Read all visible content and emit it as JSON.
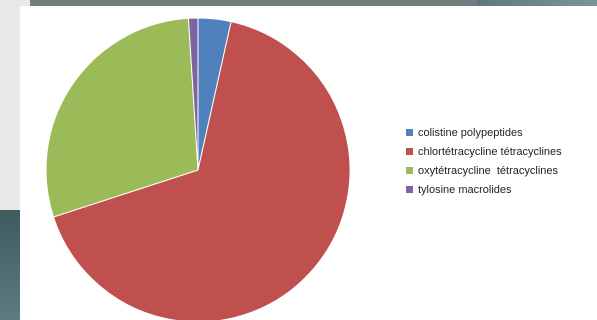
{
  "chart_data": {
    "type": "pie",
    "labels": [
      "colistine polypeptides",
      "chlortétracycline tétracyclines",
      "oxytétracycline  tétracyclines",
      "tylosine macrolides"
    ],
    "values": [
      3.5,
      66.5,
      29.0,
      1.0
    ],
    "colors": [
      "#4f81bd",
      "#c0504d",
      "#9bbb59",
      "#8064a2"
    ],
    "legend_position": "right"
  },
  "legend": {
    "items": [
      {
        "label": "colistine polypeptides",
        "color": "#4f81bd"
      },
      {
        "label": "chlortétracycline tétracyclines",
        "color": "#c0504d"
      },
      {
        "label": "oxytétracycline  tétracyclines",
        "color": "#9bbb59"
      },
      {
        "label": "tylosine macrolides",
        "color": "#8064a2"
      }
    ]
  }
}
